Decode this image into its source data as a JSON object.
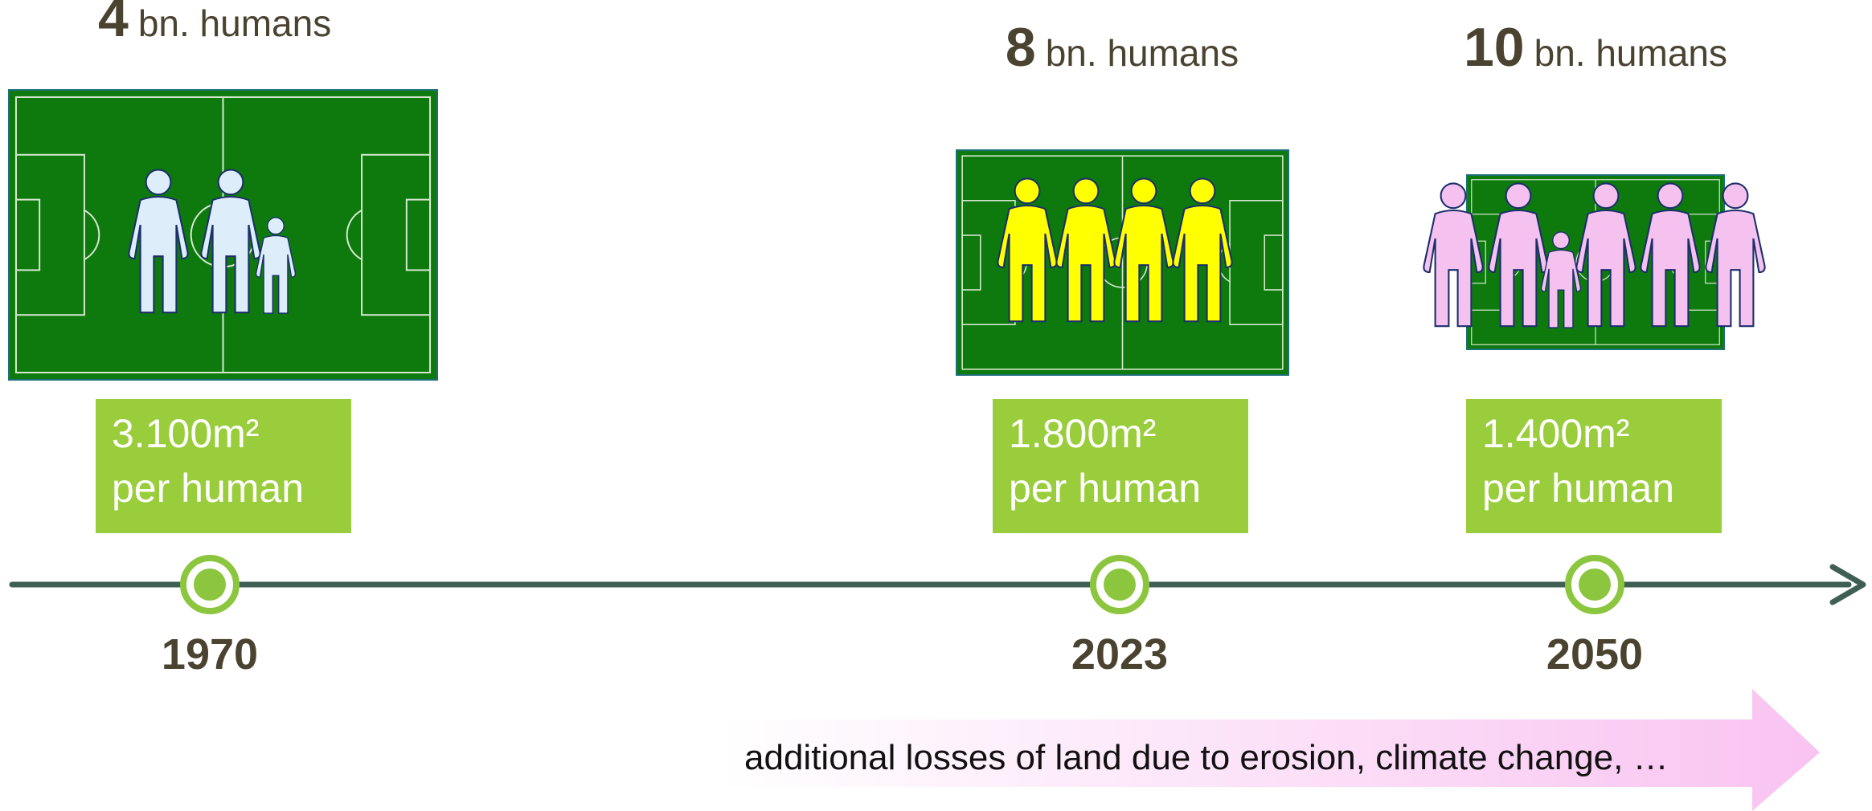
{
  "milestones": [
    {
      "count": "4",
      "unit": "bn. humans",
      "area": "3.100m²",
      "per": "per human",
      "year": "1970"
    },
    {
      "count": "8",
      "unit": "bn. humans",
      "area": "1.800m²",
      "per": "per human",
      "year": "2023"
    },
    {
      "count": "10",
      "unit": "bn. humans",
      "area": "1.400m²",
      "per": "per human",
      "year": "2050"
    }
  ],
  "note": "additional losses of land due to erosion, climate change, …"
}
